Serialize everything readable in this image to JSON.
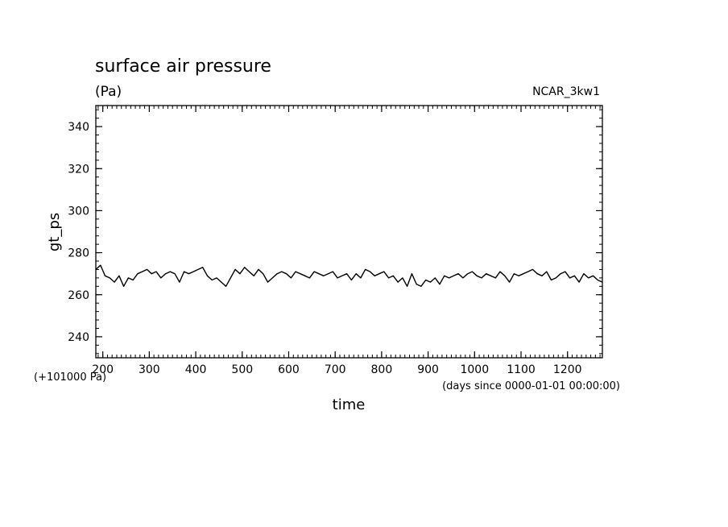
{
  "chart_data": {
    "type": "line",
    "title": "surface air pressure",
    "units": "(Pa)",
    "tag": "NCAR_3kw1",
    "ylabel": "gt_ps",
    "xlabel": "time",
    "y_offset_label": "(+101000 Pa)",
    "x_units_label": "(days since 0000-01-01 00:00:00)",
    "xlim": [
      185,
      1275
    ],
    "ylim": [
      230,
      350
    ],
    "x_ticks": [
      200,
      300,
      400,
      500,
      600,
      700,
      800,
      900,
      1000,
      1100,
      1200
    ],
    "y_ticks": [
      240,
      260,
      280,
      300,
      320,
      340
    ],
    "grid": false,
    "series": [
      {
        "color": "#000000",
        "x": [
          185,
          195,
          205,
          215,
          225,
          235,
          245,
          255,
          265,
          275,
          285,
          295,
          305,
          315,
          325,
          335,
          345,
          355,
          365,
          375,
          385,
          395,
          405,
          415,
          425,
          435,
          445,
          455,
          465,
          475,
          485,
          495,
          505,
          515,
          525,
          535,
          545,
          555,
          565,
          575,
          585,
          595,
          605,
          615,
          625,
          635,
          645,
          655,
          665,
          675,
          685,
          695,
          705,
          715,
          725,
          735,
          745,
          755,
          765,
          775,
          785,
          795,
          805,
          815,
          825,
          835,
          845,
          855,
          865,
          875,
          885,
          895,
          905,
          915,
          925,
          935,
          945,
          955,
          965,
          975,
          985,
          995,
          1005,
          1015,
          1025,
          1035,
          1045,
          1055,
          1065,
          1075,
          1085,
          1095,
          1105,
          1115,
          1125,
          1135,
          1145,
          1155,
          1165,
          1175,
          1185,
          1195,
          1205,
          1215,
          1225,
          1235,
          1245,
          1255,
          1265,
          1275
        ],
        "y": [
          272,
          274,
          269,
          268,
          266,
          269,
          264,
          268,
          267,
          270,
          271,
          272,
          270,
          271,
          268,
          270,
          271,
          270,
          266,
          271,
          270,
          271,
          272,
          273,
          269,
          267,
          268,
          266,
          264,
          268,
          272,
          270,
          273,
          271,
          269,
          272,
          270,
          266,
          268,
          270,
          271,
          270,
          268,
          271,
          270,
          269,
          268,
          271,
          270,
          269,
          270,
          271,
          268,
          269,
          270,
          267,
          270,
          268,
          272,
          271,
          269,
          270,
          271,
          268,
          269,
          266,
          268,
          264,
          270,
          265,
          264,
          267,
          266,
          268,
          265,
          269,
          268,
          269,
          270,
          268,
          270,
          271,
          269,
          268,
          270,
          269,
          268,
          271,
          269,
          266,
          270,
          269,
          270,
          271,
          272,
          270,
          269,
          271,
          267,
          268,
          270,
          271,
          268,
          269,
          266,
          270,
          268,
          269,
          267,
          266
        ]
      }
    ]
  }
}
